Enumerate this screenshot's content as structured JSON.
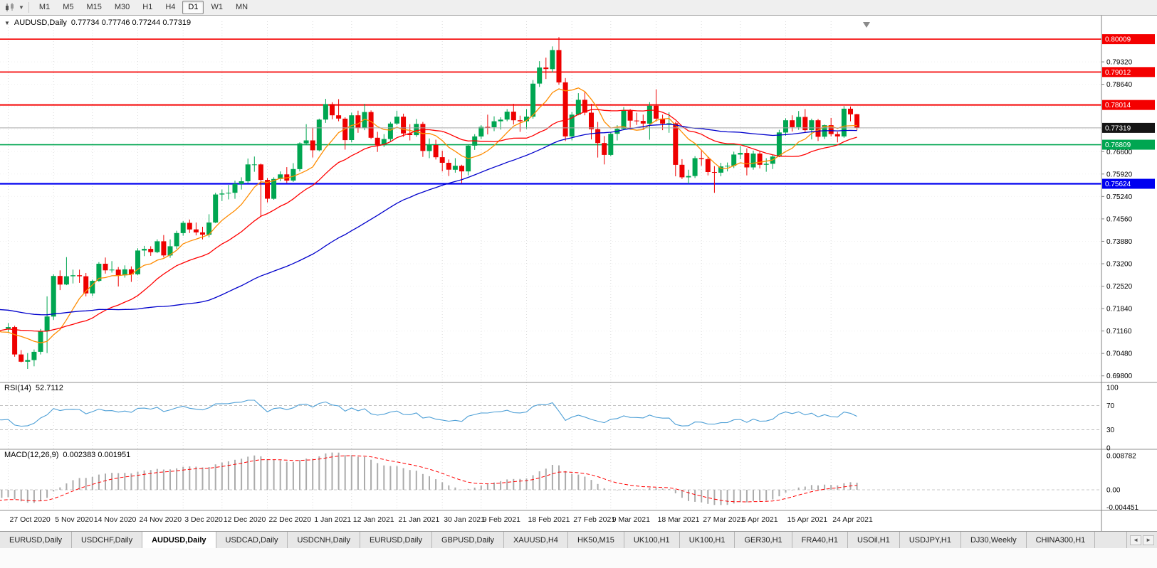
{
  "toolbar": {
    "dropdown_caret": "▼",
    "timeframes": [
      {
        "label": "M1",
        "active": false
      },
      {
        "label": "M5",
        "active": false
      },
      {
        "label": "M15",
        "active": false
      },
      {
        "label": "M30",
        "active": false
      },
      {
        "label": "H1",
        "active": false
      },
      {
        "label": "H4",
        "active": false
      },
      {
        "label": "D1",
        "active": true
      },
      {
        "label": "W1",
        "active": false
      },
      {
        "label": "MN",
        "active": false
      }
    ]
  },
  "main_chart": {
    "title_marker": "▼",
    "symbol_title": "AUDUSD,Daily",
    "ohlc_text": "0.77734 0.77746 0.77244 0.77319"
  },
  "rsi_panel": {
    "label": "RSI(14)",
    "value": "52.7112",
    "axis_labels": [
      "100",
      "70",
      "30",
      "0"
    ]
  },
  "macd_panel": {
    "label": "MACD(12,26,9)",
    "value": "0.002383 0.001951",
    "axis_labels": [
      "0.008782",
      "0.00",
      "-0.004451"
    ]
  },
  "price_axis": {
    "plain_labels": [
      "0.79320",
      "0.78640",
      "0.77960",
      "0.77280",
      "0.76600",
      "0.75920",
      "0.75240",
      "0.74560",
      "0.73880",
      "0.73200",
      "0.72520",
      "0.71840",
      "0.71160",
      "0.70480",
      "0.69800"
    ]
  },
  "tabbar": {
    "scroll_left": "◄",
    "scroll_right": "►",
    "tabs": [
      {
        "label": "EURUSD,Daily",
        "active": false
      },
      {
        "label": "USDCHF,Daily",
        "active": false
      },
      {
        "label": "AUDUSD,Daily",
        "active": true
      },
      {
        "label": "USDCAD,Daily",
        "active": false
      },
      {
        "label": "USDCNH,Daily",
        "active": false
      },
      {
        "label": "EURUSD,Daily",
        "active": false
      },
      {
        "label": "GBPUSD,Daily",
        "active": false
      },
      {
        "label": "XAUUSD,H4",
        "active": false
      },
      {
        "label": "HK50,M15",
        "active": false
      },
      {
        "label": "UK100,H1",
        "active": false
      },
      {
        "label": "UK100,H1",
        "active": false
      },
      {
        "label": "GER30,H1",
        "active": false
      },
      {
        "label": "FRA40,H1",
        "active": false
      },
      {
        "label": "USOil,H1",
        "active": false
      },
      {
        "label": "USDJPY,H1",
        "active": false
      },
      {
        "label": "DJ30,Weekly",
        "active": false
      },
      {
        "label": "CHINA300,H1",
        "active": false
      }
    ]
  },
  "chart_data": {
    "type": "candlestick",
    "symbol": "AUDUSD",
    "timeframe": "Daily",
    "ohlc_last": {
      "open": 0.77734,
      "high": 0.77746,
      "low": 0.77244,
      "close": 0.77319
    },
    "price_range": [
      0.696,
      0.8055
    ],
    "hlines": [
      {
        "price": 0.80009,
        "label": "0.80009",
        "color": "#F40000",
        "width": 1.6,
        "name": "resistance-line-080009"
      },
      {
        "price": 0.79012,
        "label": "0.79012",
        "color": "#F40000",
        "width": 1.6,
        "name": "resistance-line-079012"
      },
      {
        "price": 0.78014,
        "label": "0.78014",
        "color": "#F40000",
        "width": 2,
        "name": "resistance-line-078014"
      },
      {
        "price": 0.76809,
        "label": "0.76809",
        "color": "#00A651",
        "width": 1.6,
        "name": "support-line-076809"
      },
      {
        "price": 0.75624,
        "label": "0.75624",
        "color": "#0000F0",
        "width": 2.2,
        "name": "support-line-075624"
      }
    ],
    "current_price": {
      "value": 0.77319,
      "label": "0.77319",
      "line_color": "#A8A8A8",
      "tag_color": "#151515"
    },
    "moving_averages": [
      {
        "period": 8,
        "color": "#FF8C00",
        "name": "ma-fast-orange"
      },
      {
        "period": 20,
        "color": "#FF0000",
        "name": "ma-mid-red"
      },
      {
        "period": 55,
        "color": "#0000CC",
        "name": "ma-slow-blue"
      }
    ],
    "indicators": {
      "rsi": {
        "period": 14,
        "levels": [
          30,
          70
        ],
        "color": "#4D9FD6",
        "last": 52.7112
      },
      "macd": {
        "fast": 12,
        "slow": 26,
        "signal": 9,
        "hist_color": "#ABABAB",
        "signal_color": "#FF0000",
        "main_last": 0.002383,
        "signal_last": 0.001951
      }
    },
    "colors": {
      "bull": "#00A651",
      "bear": "#EE0000",
      "grid": "#DCDCDC",
      "axis_border": "#808080"
    },
    "date_labels": [
      [
        "27 Oct 2020",
        0
      ],
      [
        "5 Nov 2020",
        7
      ],
      [
        "14 Nov 2020",
        13
      ],
      [
        "24 Nov 2020",
        20
      ],
      [
        "3 Dec 2020",
        27
      ],
      [
        "12 Dec 2020",
        33
      ],
      [
        "22 Dec 2020",
        40
      ],
      [
        "1 Jan 2021",
        47
      ],
      [
        "12 Jan 2021",
        53
      ],
      [
        "21 Jan 2021",
        60
      ],
      [
        "30 Jan 2021",
        67
      ],
      [
        "9 Feb 2021",
        73
      ],
      [
        "18 Feb 2021",
        80
      ],
      [
        "27 Feb 2021",
        87
      ],
      [
        "9 Mar 2021",
        93
      ],
      [
        "18 Mar 2021",
        100
      ],
      [
        "27 Mar 2021",
        107
      ],
      [
        "6 Apr 2021",
        113
      ],
      [
        "15 Apr 2021",
        120
      ],
      [
        "24 Apr 2021",
        127
      ]
    ],
    "lead_in_closes": [
      0.731,
      0.7288,
      0.732,
      0.727,
      0.7282,
      0.7287,
      0.7215,
      0.723,
      0.7285,
      0.7305,
      0.7297,
      0.7265,
      0.7303,
      0.731,
      0.7295,
      0.7232,
      0.7165,
      0.7108,
      0.7052,
      0.703,
      0.7055,
      0.7078,
      0.707,
      0.7038,
      0.7082,
      0.7132,
      0.7158,
      0.7188,
      0.7166,
      0.7152,
      0.7184,
      0.716,
      0.7136,
      0.7102,
      0.7066,
      0.7082,
      0.7118,
      0.7152,
      0.7126,
      0.7123
    ],
    "candles": [
      [
        0.7123,
        0.714,
        0.711,
        0.7128
      ],
      [
        0.7128,
        0.7132,
        0.7038,
        0.7045
      ],
      [
        0.7045,
        0.7058,
        0.7021,
        0.7023
      ],
      [
        0.7023,
        0.7049,
        0.7001,
        0.7028
      ],
      [
        0.7028,
        0.706,
        0.7009,
        0.7053
      ],
      [
        0.7053,
        0.7122,
        0.7045,
        0.7115
      ],
      [
        0.7115,
        0.7221,
        0.7049,
        0.716
      ],
      [
        0.716,
        0.7288,
        0.715,
        0.7283
      ],
      [
        0.7283,
        0.73,
        0.724,
        0.7257
      ],
      [
        0.7257,
        0.734,
        0.7255,
        0.7282
      ],
      [
        0.7282,
        0.7302,
        0.726,
        0.7285
      ],
      [
        0.7285,
        0.7302,
        0.7262,
        0.7282
      ],
      [
        0.7282,
        0.7292,
        0.7221,
        0.723
      ],
      [
        0.723,
        0.7272,
        0.7222,
        0.7268
      ],
      [
        0.7268,
        0.7325,
        0.7265,
        0.732
      ],
      [
        0.732,
        0.7339,
        0.729,
        0.73
      ],
      [
        0.73,
        0.7328,
        0.7293,
        0.7302
      ],
      [
        0.7302,
        0.731,
        0.7251,
        0.7285
      ],
      [
        0.7285,
        0.7315,
        0.7278,
        0.7303
      ],
      [
        0.7303,
        0.7312,
        0.7265,
        0.7288
      ],
      [
        0.7288,
        0.7367,
        0.7285,
        0.736
      ],
      [
        0.736,
        0.7374,
        0.7343,
        0.7365
      ],
      [
        0.7365,
        0.7373,
        0.7344,
        0.7355
      ],
      [
        0.7355,
        0.7394,
        0.7352,
        0.7388
      ],
      [
        0.7388,
        0.7407,
        0.7339,
        0.7345
      ],
      [
        0.7345,
        0.7394,
        0.7338,
        0.7373
      ],
      [
        0.7373,
        0.742,
        0.7365,
        0.7413
      ],
      [
        0.7413,
        0.7449,
        0.7405,
        0.7444
      ],
      [
        0.7444,
        0.7454,
        0.7413,
        0.7424
      ],
      [
        0.7424,
        0.7445,
        0.7406,
        0.7415
      ],
      [
        0.7415,
        0.7432,
        0.7394,
        0.7408
      ],
      [
        0.7408,
        0.747,
        0.74,
        0.7445
      ],
      [
        0.7445,
        0.7535,
        0.7443,
        0.753
      ],
      [
        0.753,
        0.7545,
        0.751,
        0.7533
      ],
      [
        0.7533,
        0.7559,
        0.7515,
        0.7535
      ],
      [
        0.7535,
        0.7572,
        0.7517,
        0.7562
      ],
      [
        0.7562,
        0.7582,
        0.7545,
        0.757
      ],
      [
        0.757,
        0.7639,
        0.7565,
        0.7621
      ],
      [
        0.7621,
        0.7645,
        0.7599,
        0.7621
      ],
      [
        0.7621,
        0.7624,
        0.7462,
        0.7574
      ],
      [
        0.7574,
        0.758,
        0.7506,
        0.7517
      ],
      [
        0.7517,
        0.7582,
        0.7514,
        0.7577
      ],
      [
        0.7577,
        0.76,
        0.757,
        0.7591
      ],
      [
        0.7591,
        0.7613,
        0.7565,
        0.7572
      ],
      [
        0.7572,
        0.7625,
        0.7568,
        0.7607
      ],
      [
        0.7607,
        0.7688,
        0.76,
        0.7685
      ],
      [
        0.7685,
        0.7743,
        0.7682,
        0.7694
      ],
      [
        0.7694,
        0.7733,
        0.7642,
        0.7664
      ],
      [
        0.7664,
        0.776,
        0.7661,
        0.7757
      ],
      [
        0.7757,
        0.782,
        0.7747,
        0.7804
      ],
      [
        0.7804,
        0.781,
        0.7758,
        0.777
      ],
      [
        0.777,
        0.7819,
        0.7752,
        0.776
      ],
      [
        0.776,
        0.7764,
        0.7666,
        0.7695
      ],
      [
        0.7695,
        0.7778,
        0.7688,
        0.777
      ],
      [
        0.777,
        0.7784,
        0.7717,
        0.7731
      ],
      [
        0.7731,
        0.7805,
        0.7725,
        0.778
      ],
      [
        0.778,
        0.7785,
        0.7698,
        0.7702
      ],
      [
        0.7702,
        0.772,
        0.7659,
        0.7679
      ],
      [
        0.7679,
        0.7713,
        0.7674,
        0.7698
      ],
      [
        0.7698,
        0.775,
        0.769,
        0.7745
      ],
      [
        0.7745,
        0.7784,
        0.774,
        0.7766
      ],
      [
        0.7766,
        0.7775,
        0.7705,
        0.7715
      ],
      [
        0.7715,
        0.7743,
        0.7694,
        0.771
      ],
      [
        0.771,
        0.7759,
        0.7705,
        0.7744
      ],
      [
        0.7744,
        0.775,
        0.7644,
        0.7662
      ],
      [
        0.7662,
        0.77,
        0.764,
        0.768
      ],
      [
        0.768,
        0.7696,
        0.7636,
        0.7643
      ],
      [
        0.7643,
        0.7663,
        0.76,
        0.7626
      ],
      [
        0.7626,
        0.7636,
        0.7586,
        0.7605
      ],
      [
        0.7605,
        0.764,
        0.7596,
        0.7617
      ],
      [
        0.7617,
        0.762,
        0.7564,
        0.76
      ],
      [
        0.76,
        0.7682,
        0.7588,
        0.7678
      ],
      [
        0.7678,
        0.7713,
        0.7665,
        0.7706
      ],
      [
        0.7706,
        0.774,
        0.7698,
        0.7735
      ],
      [
        0.7735,
        0.7772,
        0.7712,
        0.7734
      ],
      [
        0.7734,
        0.7767,
        0.7722,
        0.7752
      ],
      [
        0.7752,
        0.7764,
        0.7727,
        0.7757
      ],
      [
        0.7757,
        0.7789,
        0.7752,
        0.7781
      ],
      [
        0.7781,
        0.7805,
        0.7742,
        0.7755
      ],
      [
        0.7755,
        0.7769,
        0.772,
        0.7752
      ],
      [
        0.7752,
        0.7789,
        0.7729,
        0.7766
      ],
      [
        0.7766,
        0.7877,
        0.776,
        0.7866
      ],
      [
        0.7866,
        0.7934,
        0.7856,
        0.7915
      ],
      [
        0.7915,
        0.7945,
        0.788,
        0.791
      ],
      [
        0.791,
        0.7979,
        0.79,
        0.7968
      ],
      [
        0.7968,
        0.8007,
        0.7863,
        0.787
      ],
      [
        0.787,
        0.7883,
        0.7692,
        0.7706
      ],
      [
        0.7706,
        0.778,
        0.7694,
        0.7772
      ],
      [
        0.7772,
        0.7837,
        0.777,
        0.7817
      ],
      [
        0.7817,
        0.7841,
        0.777,
        0.7778
      ],
      [
        0.7778,
        0.7805,
        0.7697,
        0.7728
      ],
      [
        0.7728,
        0.775,
        0.7642,
        0.7686
      ],
      [
        0.7686,
        0.7707,
        0.7621,
        0.765
      ],
      [
        0.765,
        0.772,
        0.7646,
        0.7714
      ],
      [
        0.7714,
        0.774,
        0.7694,
        0.7729
      ],
      [
        0.7729,
        0.7795,
        0.7725,
        0.7785
      ],
      [
        0.7785,
        0.7789,
        0.7731,
        0.7754
      ],
      [
        0.7754,
        0.7778,
        0.7741,
        0.7753
      ],
      [
        0.7753,
        0.7772,
        0.7726,
        0.7745
      ],
      [
        0.7745,
        0.781,
        0.7696,
        0.7799
      ],
      [
        0.7799,
        0.7849,
        0.7751,
        0.776
      ],
      [
        0.776,
        0.7772,
        0.7725,
        0.7745
      ],
      [
        0.7745,
        0.7779,
        0.7717,
        0.7746
      ],
      [
        0.7746,
        0.775,
        0.7585,
        0.762
      ],
      [
        0.762,
        0.7637,
        0.7577,
        0.7582
      ],
      [
        0.7582,
        0.7605,
        0.7562,
        0.7586
      ],
      [
        0.7586,
        0.7646,
        0.758,
        0.764
      ],
      [
        0.764,
        0.7664,
        0.7617,
        0.7637
      ],
      [
        0.7637,
        0.7644,
        0.7588,
        0.7598
      ],
      [
        0.7598,
        0.7616,
        0.7535,
        0.7596
      ],
      [
        0.7596,
        0.7626,
        0.7585,
        0.7615
      ],
      [
        0.7615,
        0.7627,
        0.76,
        0.7617
      ],
      [
        0.7617,
        0.766,
        0.761,
        0.7651
      ],
      [
        0.7651,
        0.7677,
        0.7637,
        0.7656
      ],
      [
        0.7656,
        0.767,
        0.7588,
        0.7612
      ],
      [
        0.7612,
        0.7663,
        0.7605,
        0.7654
      ],
      [
        0.7654,
        0.7661,
        0.7609,
        0.762
      ],
      [
        0.762,
        0.764,
        0.7599,
        0.7623
      ],
      [
        0.7623,
        0.765,
        0.7607,
        0.7645
      ],
      [
        0.7645,
        0.7726,
        0.7643,
        0.7718
      ],
      [
        0.7718,
        0.7761,
        0.7708,
        0.7755
      ],
      [
        0.7755,
        0.777,
        0.7721,
        0.7734
      ],
      [
        0.7734,
        0.7783,
        0.7726,
        0.7765
      ],
      [
        0.7765,
        0.7789,
        0.7717,
        0.7725
      ],
      [
        0.7725,
        0.776,
        0.7697,
        0.7755
      ],
      [
        0.7755,
        0.7759,
        0.7692,
        0.7705
      ],
      [
        0.7705,
        0.7742,
        0.7698,
        0.774
      ],
      [
        0.774,
        0.7762,
        0.7706,
        0.7713
      ],
      [
        0.7713,
        0.772,
        0.7688,
        0.7706
      ],
      [
        0.7706,
        0.7798,
        0.7702,
        0.779
      ],
      [
        0.779,
        0.7797,
        0.7752,
        0.7773
      ],
      [
        0.77734,
        0.77746,
        0.77244,
        0.77319
      ]
    ]
  }
}
